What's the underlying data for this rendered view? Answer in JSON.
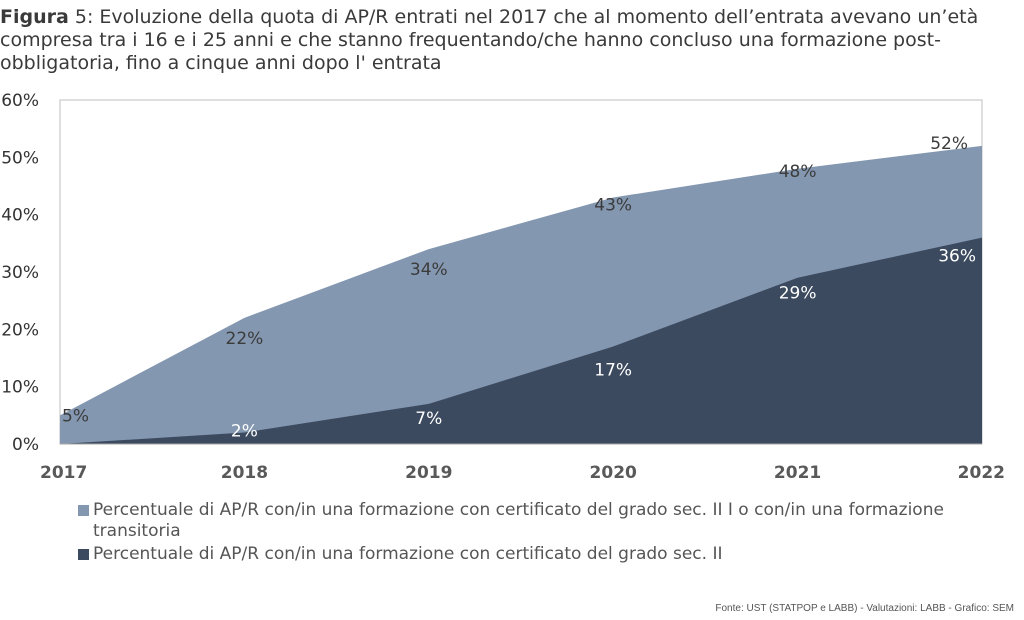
{
  "title": {
    "lead": "Figura",
    "text": " 5: Evoluzione della quota di AP/R entrati nel 2017 che al momento dell’entrata avevano un’età compresa tra i 16 e i 25 anni e che stanno frequentando/che hanno concluso una formazione post-obbligatoria, fino a cinque anni dopo l' entrata"
  },
  "chart_data": {
    "type": "area",
    "x": [
      "2017",
      "2018",
      "2019",
      "2020",
      "2021",
      "2022"
    ],
    "ylim": [
      0,
      0.6
    ],
    "y_ticks": [
      0,
      0.1,
      0.2,
      0.3,
      0.4,
      0.5,
      0.6
    ],
    "y_tick_labels": [
      "0%",
      "10%",
      "20%",
      "30%",
      "40%",
      "50%",
      "60%"
    ],
    "grid": false,
    "legend_position": "bottom",
    "series": [
      {
        "name": "Percentuale di AP/R con/in una formazione con certificato del grado sec. II I o con/in una formazione transitoria",
        "values": [
          0.05,
          0.22,
          0.34,
          0.43,
          0.48,
          0.52
        ],
        "labels": [
          "5%",
          "22%",
          "34%",
          "43%",
          "48%",
          "52%"
        ],
        "color": "#8497b0",
        "label_color": "#3b3b3b"
      },
      {
        "name": "Percentuale di AP/R con/in una formazione con certificato del grado sec. II",
        "values": [
          0.0,
          0.02,
          0.07,
          0.17,
          0.29,
          0.36
        ],
        "labels": [
          "",
          "2%",
          "7%",
          "17%",
          "29%",
          "36%"
        ],
        "color": "#3b4a5e",
        "label_color": "#ffffff"
      }
    ]
  },
  "source": "Fonte: UST (STATPOP e LABB) - Valutazioni: LABB - Grafico: SEM"
}
